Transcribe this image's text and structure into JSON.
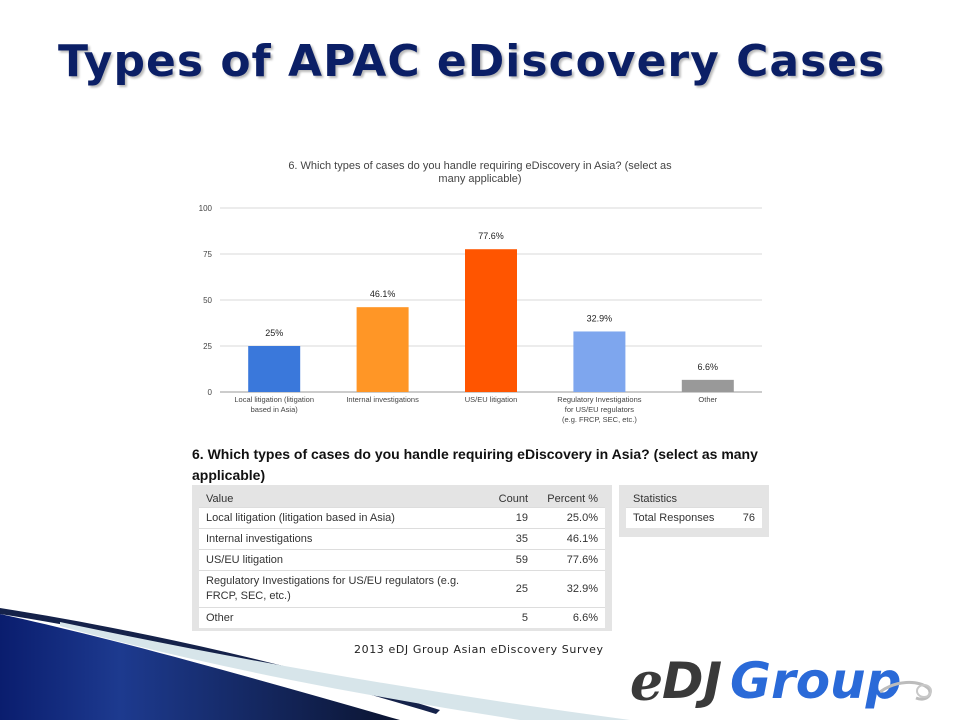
{
  "slide": {
    "title": "Types of APAC eDiscovery Cases",
    "footer": "2013 eDJ Group Asian eDiscovery Survey",
    "logo": {
      "e": "e",
      "dj": "DJ",
      "group": "Group",
      "icon": "swirl-icon"
    }
  },
  "chart_data": {
    "type": "bar",
    "title": "6. Which types of cases do you handle requiring eDiscovery in Asia? (select as many applicable)",
    "title_lines": [
      "6. Which types of cases do you handle requiring eDiscovery in Asia? (select as",
      "many applicable)"
    ],
    "categories": [
      "Local litigation (litigation based in Asia)",
      "Internal investigations",
      "US/EU litigation",
      "Regulatory Investigations for US/EU regulators (e.g. FRCP, SEC, etc.)",
      "Other"
    ],
    "category_lines": [
      [
        "Local litigation (litigation",
        "based in Asia)"
      ],
      [
        "Internal investigations"
      ],
      [
        "US/EU litigation"
      ],
      [
        "Regulatory Investigations",
        "for US/EU regulators",
        "(e.g. FRCP, SEC, etc.)"
      ],
      [
        "Other"
      ]
    ],
    "values": [
      25,
      46.1,
      77.6,
      32.9,
      6.6
    ],
    "data_labels": [
      "25%",
      "46.1%",
      "77.6%",
      "32.9%",
      "6.6%"
    ],
    "colors": [
      "#3a78db",
      "#ff9626",
      "#ff5500",
      "#7ea6ee",
      "#999999"
    ],
    "yticks": [
      0,
      25,
      50,
      75,
      100
    ],
    "ylim": [
      0,
      100
    ],
    "xlabel": "",
    "ylabel": "",
    "grid": true,
    "legend": "none"
  },
  "question": {
    "heading": "6. Which types of cases do you handle requiring eDiscovery in Asia? (select as many applicable)"
  },
  "responses_table": {
    "headers": {
      "value": "Value",
      "count": "Count",
      "percent": "Percent %"
    },
    "rows": [
      {
        "value": "Local litigation (litigation based in Asia)",
        "count": "19",
        "percent": "25.0%"
      },
      {
        "value": "Internal investigations",
        "count": "35",
        "percent": "46.1%"
      },
      {
        "value": "US/EU litigation",
        "count": "59",
        "percent": "77.6%"
      },
      {
        "value": "Regulatory Investigations for US/EU regulators (e.g. FRCP, SEC, etc.)",
        "count": "25",
        "percent": "32.9%"
      },
      {
        "value": "Other",
        "count": "5",
        "percent": "6.6%"
      }
    ]
  },
  "statistics": {
    "header": "Statistics",
    "label": "Total Responses",
    "value": "76"
  }
}
